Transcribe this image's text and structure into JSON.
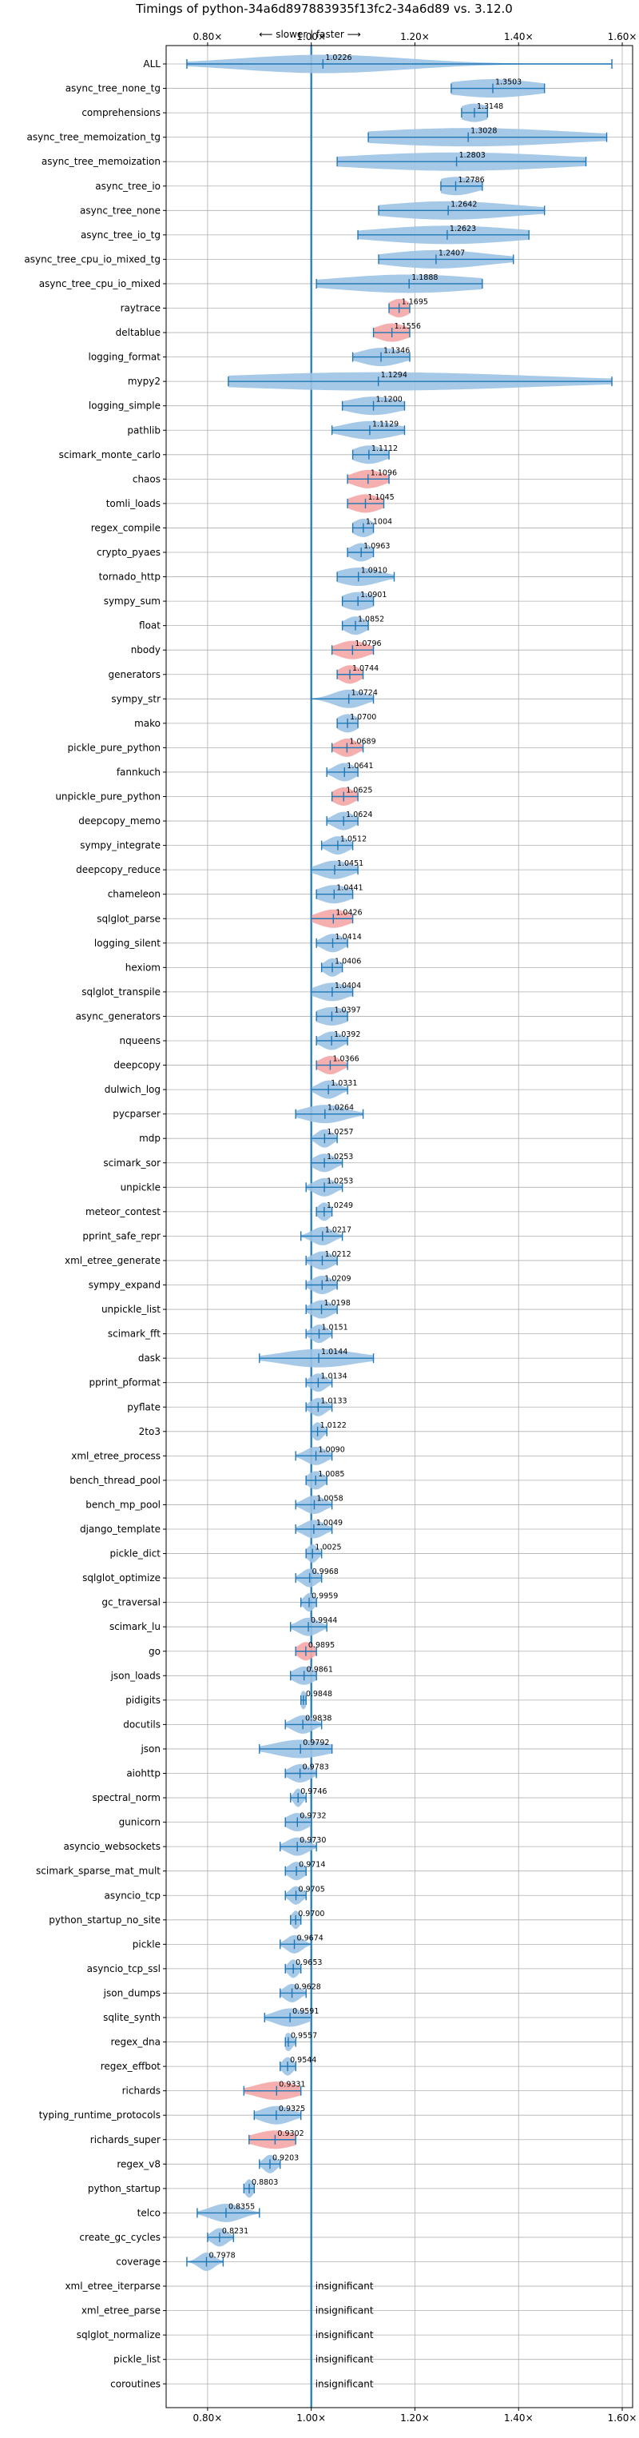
{
  "chart_data": {
    "type": "violin",
    "title": "Timings of python-34a6d897883935f13fc2-34a6d89 vs. 3.12.0",
    "direction_note": "⟵ slower | faster ⟶",
    "xlim": [
      0.72,
      1.62
    ],
    "xticks": [
      0.8,
      1.0,
      1.2,
      1.4,
      1.6
    ],
    "xtick_labels": [
      "0.80×",
      "1.00×",
      "1.20×",
      "1.40×",
      "1.60×"
    ],
    "reference_x": 1.0,
    "grid": true,
    "insignificant_label": "insignificant",
    "colors": {
      "blue": "#1f77b4",
      "blue_fill": "#9dc3e6",
      "red_fill": "#f4a6a6",
      "grid": "#b0b0b0"
    },
    "benchmarks": [
      {
        "name": "ALL",
        "value": 1.0226,
        "min": 0.76,
        "max": 1.58,
        "spread": 0.16,
        "color": "blue"
      },
      {
        "name": "async_tree_none_tg",
        "value": 1.3503,
        "min": 1.27,
        "max": 1.45,
        "spread": 0.09,
        "color": "blue"
      },
      {
        "name": "comprehensions",
        "value": 1.3148,
        "min": 1.29,
        "max": 1.34,
        "spread": 0.03,
        "color": "blue"
      },
      {
        "name": "async_tree_memoization_tg",
        "value": 1.3028,
        "min": 1.11,
        "max": 1.57,
        "spread": 0.2,
        "color": "blue"
      },
      {
        "name": "async_tree_memoization",
        "value": 1.2803,
        "min": 1.05,
        "max": 1.53,
        "spread": 0.21,
        "color": "blue"
      },
      {
        "name": "async_tree_io",
        "value": 1.2786,
        "min": 1.25,
        "max": 1.33,
        "spread": 0.04,
        "color": "blue"
      },
      {
        "name": "async_tree_none",
        "value": 1.2642,
        "min": 1.13,
        "max": 1.45,
        "spread": 0.13,
        "color": "blue"
      },
      {
        "name": "async_tree_io_tg",
        "value": 1.2623,
        "min": 1.09,
        "max": 1.42,
        "spread": 0.14,
        "color": "blue"
      },
      {
        "name": "async_tree_cpu_io_mixed_tg",
        "value": 1.2407,
        "min": 1.13,
        "max": 1.39,
        "spread": 0.1,
        "color": "blue"
      },
      {
        "name": "async_tree_cpu_io_mixed",
        "value": 1.1888,
        "min": 1.01,
        "max": 1.33,
        "spread": 0.14,
        "color": "blue"
      },
      {
        "name": "raytrace",
        "value": 1.1695,
        "min": 1.15,
        "max": 1.19,
        "spread": 0.02,
        "color": "red"
      },
      {
        "name": "deltablue",
        "value": 1.1556,
        "min": 1.12,
        "max": 1.19,
        "spread": 0.03,
        "color": "red"
      },
      {
        "name": "logging_format",
        "value": 1.1346,
        "min": 1.08,
        "max": 1.19,
        "spread": 0.04,
        "color": "blue"
      },
      {
        "name": "mypy2",
        "value": 1.1294,
        "min": 0.84,
        "max": 1.58,
        "spread": 0.3,
        "color": "blue"
      },
      {
        "name": "logging_simple",
        "value": 1.12,
        "min": 1.06,
        "max": 1.18,
        "spread": 0.05,
        "color": "blue"
      },
      {
        "name": "pathlib",
        "value": 1.1129,
        "min": 1.04,
        "max": 1.18,
        "spread": 0.05,
        "color": "blue"
      },
      {
        "name": "scimark_monte_carlo",
        "value": 1.1112,
        "min": 1.08,
        "max": 1.15,
        "spread": 0.03,
        "color": "blue"
      },
      {
        "name": "chaos",
        "value": 1.1096,
        "min": 1.07,
        "max": 1.15,
        "spread": 0.03,
        "color": "red"
      },
      {
        "name": "tomli_loads",
        "value": 1.1045,
        "min": 1.07,
        "max": 1.14,
        "spread": 0.03,
        "color": "red"
      },
      {
        "name": "regex_compile",
        "value": 1.1004,
        "min": 1.08,
        "max": 1.12,
        "spread": 0.02,
        "color": "blue"
      },
      {
        "name": "crypto_pyaes",
        "value": 1.0963,
        "min": 1.07,
        "max": 1.12,
        "spread": 0.02,
        "color": "blue"
      },
      {
        "name": "tornado_http",
        "value": 1.091,
        "min": 1.05,
        "max": 1.16,
        "spread": 0.04,
        "color": "blue"
      },
      {
        "name": "sympy_sum",
        "value": 1.0901,
        "min": 1.06,
        "max": 1.12,
        "spread": 0.03,
        "color": "blue"
      },
      {
        "name": "float",
        "value": 1.0852,
        "min": 1.06,
        "max": 1.11,
        "spread": 0.02,
        "color": "blue"
      },
      {
        "name": "nbody",
        "value": 1.0796,
        "min": 1.04,
        "max": 1.12,
        "spread": 0.03,
        "color": "red"
      },
      {
        "name": "generators",
        "value": 1.0744,
        "min": 1.05,
        "max": 1.1,
        "spread": 0.02,
        "color": "red"
      },
      {
        "name": "sympy_str",
        "value": 1.0724,
        "min": 1.0,
        "max": 1.12,
        "spread": 0.03,
        "color": "blue"
      },
      {
        "name": "mako",
        "value": 1.07,
        "min": 1.05,
        "max": 1.09,
        "spread": 0.02,
        "color": "blue"
      },
      {
        "name": "pickle_pure_python",
        "value": 1.0689,
        "min": 1.04,
        "max": 1.1,
        "spread": 0.02,
        "color": "red"
      },
      {
        "name": "fannkuch",
        "value": 1.0641,
        "min": 1.03,
        "max": 1.09,
        "spread": 0.02,
        "color": "blue"
      },
      {
        "name": "unpickle_pure_python",
        "value": 1.0625,
        "min": 1.04,
        "max": 1.09,
        "spread": 0.02,
        "color": "red"
      },
      {
        "name": "deepcopy_memo",
        "value": 1.0624,
        "min": 1.03,
        "max": 1.09,
        "spread": 0.02,
        "color": "blue"
      },
      {
        "name": "sympy_integrate",
        "value": 1.0512,
        "min": 1.02,
        "max": 1.08,
        "spread": 0.02,
        "color": "blue"
      },
      {
        "name": "deepcopy_reduce",
        "value": 1.0451,
        "min": 1.0,
        "max": 1.09,
        "spread": 0.03,
        "color": "blue"
      },
      {
        "name": "chameleon",
        "value": 1.0441,
        "min": 1.01,
        "max": 1.08,
        "spread": 0.03,
        "color": "blue"
      },
      {
        "name": "sqlglot_parse",
        "value": 1.0426,
        "min": 1.0,
        "max": 1.08,
        "spread": 0.03,
        "color": "red"
      },
      {
        "name": "logging_silent",
        "value": 1.0414,
        "min": 1.01,
        "max": 1.07,
        "spread": 0.02,
        "color": "blue"
      },
      {
        "name": "hexiom",
        "value": 1.0406,
        "min": 1.02,
        "max": 1.06,
        "spread": 0.015,
        "color": "blue"
      },
      {
        "name": "sqlglot_transpile",
        "value": 1.0404,
        "min": 1.0,
        "max": 1.08,
        "spread": 0.03,
        "color": "blue"
      },
      {
        "name": "async_generators",
        "value": 1.0397,
        "min": 1.01,
        "max": 1.07,
        "spread": 0.03,
        "color": "blue"
      },
      {
        "name": "nqueens",
        "value": 1.0392,
        "min": 1.01,
        "max": 1.07,
        "spread": 0.02,
        "color": "blue"
      },
      {
        "name": "deepcopy",
        "value": 1.0366,
        "min": 1.01,
        "max": 1.07,
        "spread": 0.02,
        "color": "red"
      },
      {
        "name": "dulwich_log",
        "value": 1.0331,
        "min": 1.0,
        "max": 1.07,
        "spread": 0.02,
        "color": "blue"
      },
      {
        "name": "pycparser",
        "value": 1.0264,
        "min": 0.97,
        "max": 1.1,
        "spread": 0.04,
        "color": "blue"
      },
      {
        "name": "mdp",
        "value": 1.0257,
        "min": 1.0,
        "max": 1.05,
        "spread": 0.015,
        "color": "blue"
      },
      {
        "name": "scimark_sor",
        "value": 1.0253,
        "min": 1.0,
        "max": 1.06,
        "spread": 0.02,
        "color": "blue"
      },
      {
        "name": "unpickle",
        "value": 1.0253,
        "min": 0.99,
        "max": 1.06,
        "spread": 0.02,
        "color": "blue"
      },
      {
        "name": "meteor_contest",
        "value": 1.0249,
        "min": 1.01,
        "max": 1.04,
        "spread": 0.012,
        "color": "blue"
      },
      {
        "name": "pprint_safe_repr",
        "value": 1.0217,
        "min": 0.98,
        "max": 1.06,
        "spread": 0.02,
        "color": "blue"
      },
      {
        "name": "xml_etree_generate",
        "value": 1.0212,
        "min": 0.99,
        "max": 1.05,
        "spread": 0.02,
        "color": "blue"
      },
      {
        "name": "sympy_expand",
        "value": 1.0209,
        "min": 0.99,
        "max": 1.05,
        "spread": 0.02,
        "color": "blue"
      },
      {
        "name": "unpickle_list",
        "value": 1.0198,
        "min": 0.99,
        "max": 1.05,
        "spread": 0.02,
        "color": "blue"
      },
      {
        "name": "scimark_fft",
        "value": 1.0151,
        "min": 0.99,
        "max": 1.04,
        "spread": 0.015,
        "color": "blue"
      },
      {
        "name": "dask",
        "value": 1.0144,
        "min": 0.9,
        "max": 1.12,
        "spread": 0.07,
        "color": "blue"
      },
      {
        "name": "pprint_pformat",
        "value": 1.0134,
        "min": 0.99,
        "max": 1.04,
        "spread": 0.015,
        "color": "blue"
      },
      {
        "name": "pyflate",
        "value": 1.0133,
        "min": 0.99,
        "max": 1.04,
        "spread": 0.015,
        "color": "blue"
      },
      {
        "name": "2to3",
        "value": 1.0122,
        "min": 1.0,
        "max": 1.03,
        "spread": 0.01,
        "color": "blue"
      },
      {
        "name": "xml_etree_process",
        "value": 1.009,
        "min": 0.97,
        "max": 1.04,
        "spread": 0.02,
        "color": "blue"
      },
      {
        "name": "bench_thread_pool",
        "value": 1.0085,
        "min": 0.99,
        "max": 1.03,
        "spread": 0.015,
        "color": "blue"
      },
      {
        "name": "bench_mp_pool",
        "value": 1.0058,
        "min": 0.97,
        "max": 1.04,
        "spread": 0.02,
        "color": "blue"
      },
      {
        "name": "django_template",
        "value": 1.0049,
        "min": 0.97,
        "max": 1.04,
        "spread": 0.02,
        "color": "blue"
      },
      {
        "name": "pickle_dict",
        "value": 1.0025,
        "min": 0.99,
        "max": 1.02,
        "spread": 0.01,
        "color": "blue"
      },
      {
        "name": "sqlglot_optimize",
        "value": 0.9968,
        "min": 0.97,
        "max": 1.02,
        "spread": 0.015,
        "color": "blue"
      },
      {
        "name": "gc_traversal",
        "value": 0.9959,
        "min": 0.98,
        "max": 1.01,
        "spread": 0.01,
        "color": "blue"
      },
      {
        "name": "scimark_lu",
        "value": 0.9944,
        "min": 0.96,
        "max": 1.03,
        "spread": 0.02,
        "color": "blue"
      },
      {
        "name": "go",
        "value": 0.9895,
        "min": 0.97,
        "max": 1.01,
        "spread": 0.015,
        "color": "red"
      },
      {
        "name": "json_loads",
        "value": 0.9861,
        "min": 0.96,
        "max": 1.01,
        "spread": 0.02,
        "color": "blue"
      },
      {
        "name": "pidigits",
        "value": 0.9848,
        "min": 0.98,
        "max": 0.99,
        "spread": 0.006,
        "color": "blue"
      },
      {
        "name": "docutils",
        "value": 0.9838,
        "min": 0.95,
        "max": 1.02,
        "spread": 0.02,
        "color": "blue"
      },
      {
        "name": "json",
        "value": 0.9792,
        "min": 0.9,
        "max": 1.04,
        "spread": 0.05,
        "color": "blue"
      },
      {
        "name": "aiohttp",
        "value": 0.9783,
        "min": 0.95,
        "max": 1.01,
        "spread": 0.02,
        "color": "blue"
      },
      {
        "name": "spectral_norm",
        "value": 0.9746,
        "min": 0.96,
        "max": 0.99,
        "spread": 0.008,
        "color": "blue"
      },
      {
        "name": "gunicorn",
        "value": 0.9732,
        "min": 0.95,
        "max": 1.0,
        "spread": 0.02,
        "color": "blue"
      },
      {
        "name": "asyncio_websockets",
        "value": 0.973,
        "min": 0.94,
        "max": 1.01,
        "spread": 0.02,
        "color": "blue"
      },
      {
        "name": "scimark_sparse_mat_mult",
        "value": 0.9714,
        "min": 0.95,
        "max": 0.99,
        "spread": 0.015,
        "color": "blue"
      },
      {
        "name": "asyncio_tcp",
        "value": 0.9705,
        "min": 0.95,
        "max": 0.99,
        "spread": 0.012,
        "color": "blue"
      },
      {
        "name": "python_startup_no_site",
        "value": 0.97,
        "min": 0.96,
        "max": 0.98,
        "spread": 0.008,
        "color": "blue"
      },
      {
        "name": "pickle",
        "value": 0.9674,
        "min": 0.94,
        "max": 1.0,
        "spread": 0.015,
        "color": "blue"
      },
      {
        "name": "asyncio_tcp_ssl",
        "value": 0.9653,
        "min": 0.95,
        "max": 0.98,
        "spread": 0.01,
        "color": "blue"
      },
      {
        "name": "json_dumps",
        "value": 0.9628,
        "min": 0.94,
        "max": 0.99,
        "spread": 0.015,
        "color": "blue"
      },
      {
        "name": "sqlite_synth",
        "value": 0.9591,
        "min": 0.91,
        "max": 1.0,
        "spread": 0.03,
        "color": "blue"
      },
      {
        "name": "regex_dna",
        "value": 0.9557,
        "min": 0.95,
        "max": 0.97,
        "spread": 0.008,
        "color": "blue"
      },
      {
        "name": "regex_effbot",
        "value": 0.9544,
        "min": 0.94,
        "max": 0.97,
        "spread": 0.01,
        "color": "blue"
      },
      {
        "name": "richards",
        "value": 0.9331,
        "min": 0.87,
        "max": 0.98,
        "spread": 0.04,
        "color": "red"
      },
      {
        "name": "typing_runtime_protocols",
        "value": 0.9325,
        "min": 0.89,
        "max": 0.98,
        "spread": 0.03,
        "color": "blue"
      },
      {
        "name": "richards_super",
        "value": 0.9302,
        "min": 0.88,
        "max": 0.97,
        "spread": 0.04,
        "color": "red"
      },
      {
        "name": "regex_v8",
        "value": 0.9203,
        "min": 0.9,
        "max": 0.94,
        "spread": 0.012,
        "color": "blue"
      },
      {
        "name": "python_startup",
        "value": 0.8803,
        "min": 0.87,
        "max": 0.89,
        "spread": 0.008,
        "color": "blue"
      },
      {
        "name": "telco",
        "value": 0.8355,
        "min": 0.78,
        "max": 0.9,
        "spread": 0.03,
        "color": "blue"
      },
      {
        "name": "create_gc_cycles",
        "value": 0.8231,
        "min": 0.8,
        "max": 0.85,
        "spread": 0.015,
        "color": "blue"
      },
      {
        "name": "coverage",
        "value": 0.7978,
        "min": 0.76,
        "max": 0.83,
        "spread": 0.015,
        "color": "blue"
      },
      {
        "name": "xml_etree_iterparse",
        "insignificant": true
      },
      {
        "name": "xml_etree_parse",
        "insignificant": true
      },
      {
        "name": "sqlglot_normalize",
        "insignificant": true
      },
      {
        "name": "pickle_list",
        "insignificant": true
      },
      {
        "name": "coroutines",
        "insignificant": true
      }
    ]
  }
}
